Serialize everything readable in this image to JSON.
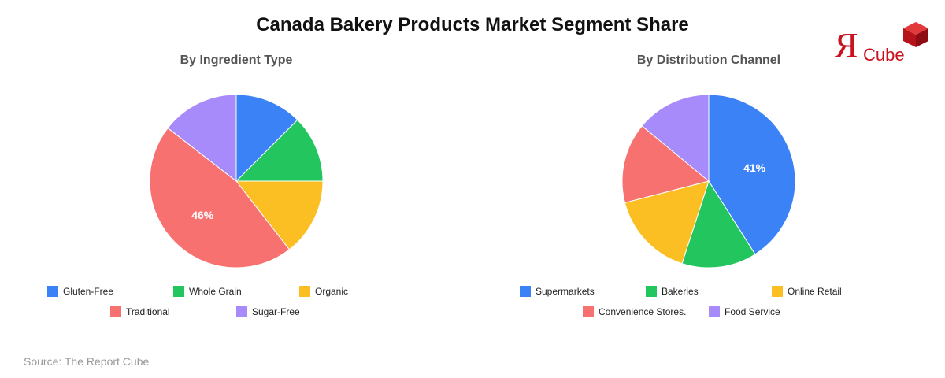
{
  "title": "Canada Bakery Products Market Segment Share",
  "logo": {
    "glyph": "Я",
    "text": "Cube",
    "color": "#c8141e"
  },
  "source": "Source: The Report Cube",
  "chart_data": [
    {
      "type": "pie",
      "title": "By Ingredient Type",
      "categories": [
        "Gluten-Free",
        "Whole Grain",
        "Organic",
        "Traditional",
        "Sugar-Free"
      ],
      "values": [
        12.5,
        12.5,
        14.5,
        46,
        14.5
      ],
      "colors": [
        "#3b82f6",
        "#22c55e",
        "#fbbf24",
        "#f87171",
        "#a78bfa"
      ],
      "data_labels": [
        null,
        null,
        null,
        "46%",
        null
      ],
      "legend_position": "bottom"
    },
    {
      "type": "pie",
      "title": "By Distribution Channel",
      "categories": [
        "Supermarkets",
        "Bakeries",
        "Online Retail",
        "Convenience Stores.",
        "Food Service"
      ],
      "values": [
        41,
        14,
        16,
        15,
        14
      ],
      "colors": [
        "#3b82f6",
        "#22c55e",
        "#fbbf24",
        "#f87171",
        "#a78bfa"
      ],
      "data_labels": [
        "41%",
        null,
        null,
        null,
        null
      ],
      "legend_position": "bottom"
    }
  ]
}
